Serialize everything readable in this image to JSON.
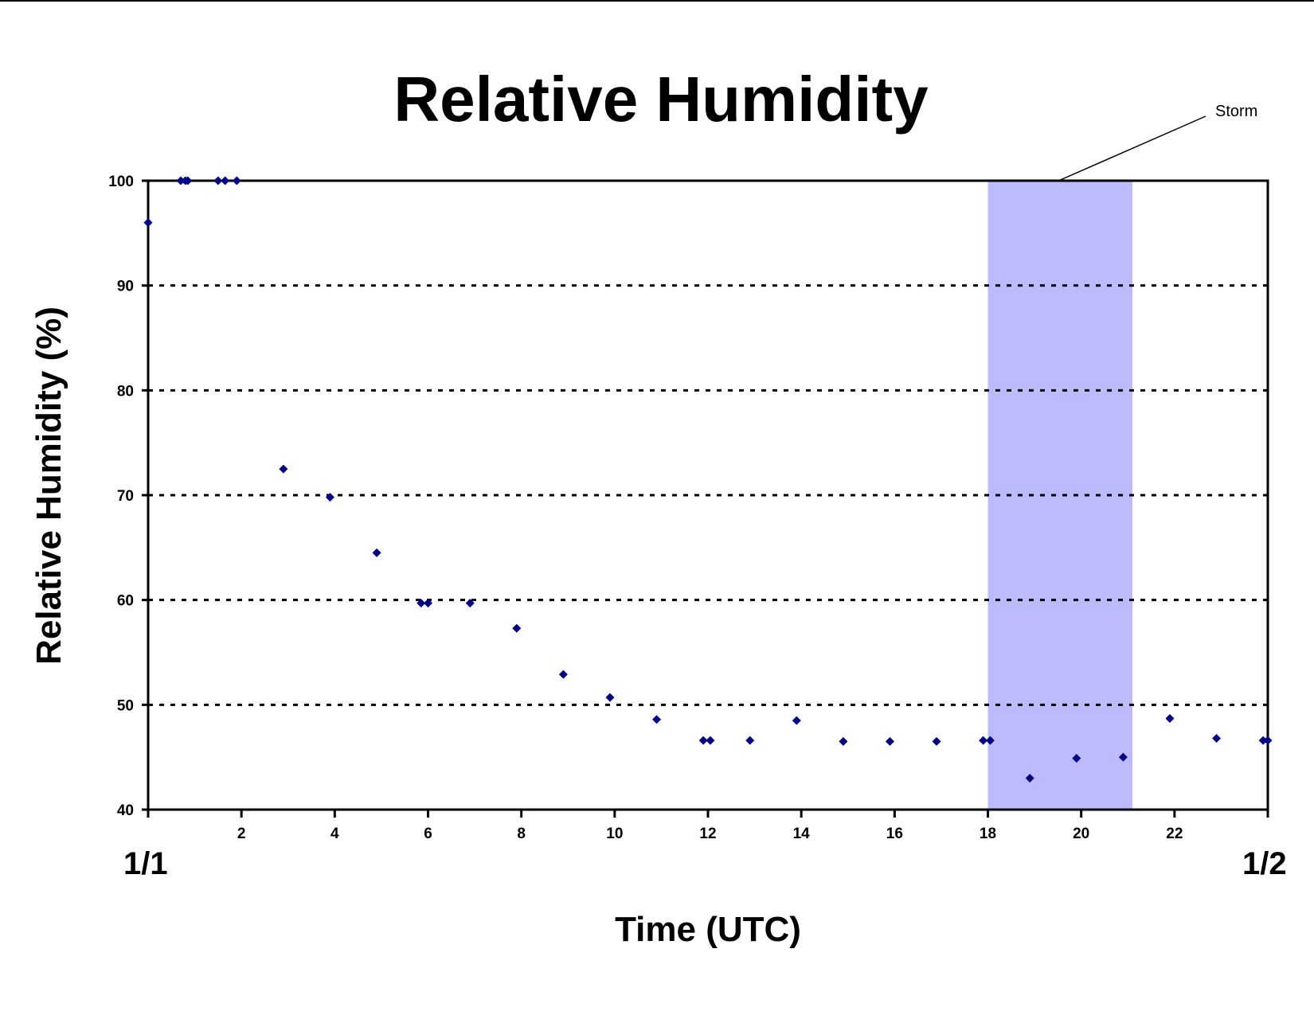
{
  "chart_data": {
    "type": "scatter",
    "title": "Relative Humidity",
    "xlabel": "Time (UTC)",
    "ylabel": "Relative Humidity (%)",
    "xlim": [
      0,
      24
    ],
    "ylim": [
      40,
      100
    ],
    "x_ticks": [
      "2",
      "4",
      "6",
      "8",
      "10",
      "12",
      "14",
      "16",
      "18",
      "20",
      "22"
    ],
    "y_ticks": [
      "40",
      "50",
      "60",
      "70",
      "80",
      "90",
      "100"
    ],
    "start_date": "1/1",
    "end_date": "1/2",
    "grid": "dashed horizontal at 50, 60, 70, 80, 90",
    "marker_color": "#00008b",
    "shaded_region": {
      "label": "Storm",
      "x_start": 18.0,
      "x_end": 21.1,
      "color": "#bbbbfd"
    },
    "points": [
      {
        "x": 0.0,
        "y": 96.0
      },
      {
        "x": 0.7,
        "y": 100.0
      },
      {
        "x": 0.8,
        "y": 100.0
      },
      {
        "x": 0.85,
        "y": 100.0
      },
      {
        "x": 1.5,
        "y": 100.0
      },
      {
        "x": 1.65,
        "y": 100.0
      },
      {
        "x": 1.9,
        "y": 100.0
      },
      {
        "x": 2.9,
        "y": 72.5
      },
      {
        "x": 3.9,
        "y": 69.8
      },
      {
        "x": 4.9,
        "y": 64.5
      },
      {
        "x": 5.85,
        "y": 59.7
      },
      {
        "x": 6.0,
        "y": 59.7
      },
      {
        "x": 6.9,
        "y": 59.7
      },
      {
        "x": 7.9,
        "y": 57.3
      },
      {
        "x": 8.9,
        "y": 52.9
      },
      {
        "x": 9.9,
        "y": 50.7
      },
      {
        "x": 10.9,
        "y": 48.6
      },
      {
        "x": 11.9,
        "y": 46.6
      },
      {
        "x": 12.05,
        "y": 46.6
      },
      {
        "x": 12.9,
        "y": 46.6
      },
      {
        "x": 13.9,
        "y": 48.5
      },
      {
        "x": 14.9,
        "y": 46.5
      },
      {
        "x": 15.9,
        "y": 46.5
      },
      {
        "x": 16.9,
        "y": 46.5
      },
      {
        "x": 17.9,
        "y": 46.6
      },
      {
        "x": 18.05,
        "y": 46.6
      },
      {
        "x": 18.9,
        "y": 43.0
      },
      {
        "x": 19.9,
        "y": 44.9
      },
      {
        "x": 20.9,
        "y": 45.0
      },
      {
        "x": 21.9,
        "y": 48.7
      },
      {
        "x": 22.9,
        "y": 46.8
      },
      {
        "x": 23.9,
        "y": 46.6
      },
      {
        "x": 24.0,
        "y": 46.6
      }
    ]
  }
}
